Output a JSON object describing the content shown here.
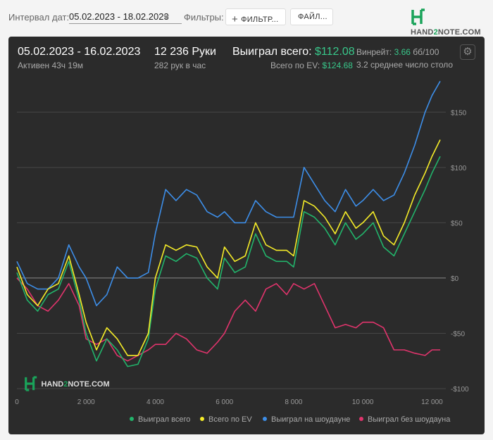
{
  "topbar": {
    "interval_label": "Интервал дат:",
    "date_range": "05.02.2023 - 18.02.2023",
    "filters_label": "Фильтры:",
    "filter_button": "ФИЛЬТР...",
    "file_button": "ФАЙЛ...",
    "logo_pre": "HAND",
    "logo_two": "2",
    "logo_post": "NOTE.COM"
  },
  "summary": {
    "range": "05.02.2023 - 16.02.2023",
    "active": "Активен 43ч 19м",
    "hands": "12 236 Руки",
    "hands_per_hour": "282 рук в час",
    "won_total_label": "Выиграл всего:",
    "won_total_value": "$112.08",
    "ev_label": "Всего по EV:",
    "ev_value": "$124.68",
    "winrate_label": "Винрейт:",
    "winrate_value": "3.66",
    "winrate_unit": "бб/100",
    "avg_tables": "3.2 среднее число столо"
  },
  "watermark": {
    "pre": "HAND",
    "two": "2",
    "post": "NOTE.COM"
  },
  "colors": {
    "won_total": "#22b46b",
    "ev": "#f5ec28",
    "showdown": "#3d8ee8",
    "non_showdown": "#e0346c",
    "panel_bg": "#2b2b2b"
  },
  "chart_data": {
    "type": "line",
    "xlim": [
      0,
      12236
    ],
    "ylim": [
      -100,
      175
    ],
    "x_ticks": [
      0,
      2000,
      4000,
      6000,
      8000,
      10000,
      12000
    ],
    "x_tick_labels": [
      "0",
      "2 000",
      "4 000",
      "6 000",
      "8 000",
      "10 000",
      "12 000"
    ],
    "y_ticks": [
      150,
      100,
      50,
      0,
      -50,
      -100
    ],
    "y_tick_labels": [
      "$150",
      "$100",
      "$50",
      "$0",
      "-$50",
      "-$100"
    ],
    "x": [
      0,
      300,
      600,
      900,
      1200,
      1500,
      1800,
      2000,
      2300,
      2600,
      2900,
      3200,
      3500,
      3800,
      4000,
      4300,
      4600,
      4900,
      5200,
      5500,
      5800,
      6000,
      6300,
      6600,
      6900,
      7200,
      7500,
      7800,
      8000,
      8300,
      8600,
      8900,
      9200,
      9500,
      9800,
      10000,
      10300,
      10600,
      10900,
      11200,
      11500,
      11800,
      12000,
      12236
    ],
    "series": [
      {
        "name": "Выиграл всего",
        "key": "won_total",
        "values": [
          5,
          -20,
          -30,
          -15,
          -10,
          15,
          -20,
          -50,
          -75,
          -55,
          -65,
          -80,
          -78,
          -55,
          -10,
          20,
          15,
          22,
          18,
          0,
          -10,
          18,
          5,
          10,
          40,
          20,
          15,
          15,
          10,
          60,
          55,
          45,
          30,
          50,
          35,
          40,
          50,
          28,
          20,
          40,
          60,
          80,
          95,
          110
        ]
      },
      {
        "name": "Всего по EV",
        "key": "ev",
        "values": [
          10,
          -15,
          -25,
          -10,
          -5,
          20,
          -15,
          -40,
          -65,
          -45,
          -55,
          -70,
          -70,
          -50,
          0,
          30,
          25,
          30,
          28,
          10,
          0,
          28,
          15,
          20,
          50,
          30,
          25,
          25,
          20,
          70,
          65,
          55,
          40,
          60,
          45,
          50,
          60,
          38,
          30,
          50,
          75,
          95,
          110,
          125
        ]
      },
      {
        "name": "Выиграл на шоудауне",
        "key": "showdown",
        "values": [
          15,
          -5,
          -10,
          -10,
          0,
          30,
          10,
          0,
          -25,
          -15,
          10,
          0,
          0,
          5,
          40,
          80,
          70,
          80,
          75,
          60,
          55,
          60,
          50,
          50,
          70,
          60,
          55,
          55,
          55,
          100,
          85,
          70,
          60,
          80,
          65,
          70,
          80,
          70,
          75,
          95,
          120,
          150,
          165,
          178
        ]
      },
      {
        "name": "Выиграл без шоудауна",
        "key": "non_showdown",
        "values": [
          0,
          -10,
          -25,
          -30,
          -20,
          -5,
          -25,
          -55,
          -60,
          -55,
          -70,
          -75,
          -70,
          -65,
          -60,
          -60,
          -50,
          -55,
          -65,
          -68,
          -58,
          -50,
          -30,
          -20,
          -30,
          -10,
          -5,
          -15,
          -5,
          -10,
          -5,
          -25,
          -45,
          -42,
          -45,
          -40,
          -40,
          -45,
          -65,
          -65,
          -68,
          -70,
          -65,
          -65
        ]
      }
    ]
  }
}
